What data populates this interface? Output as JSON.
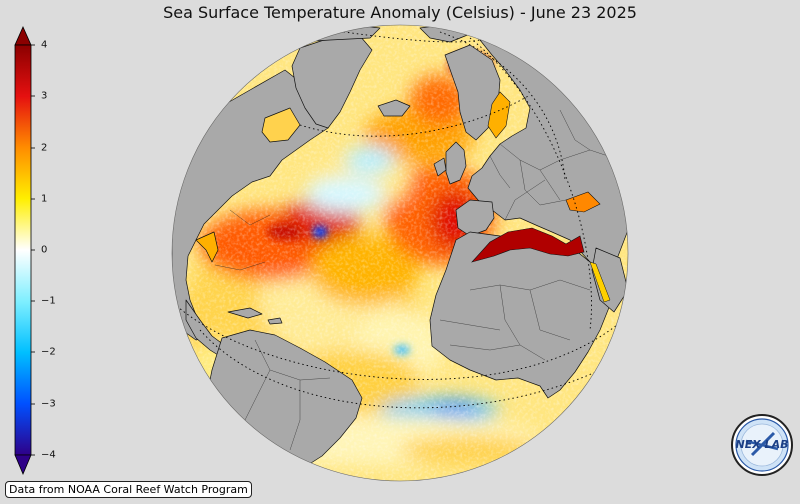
{
  "title": "Sea Surface Temperature Anomaly (Celsius) - June 23 2025",
  "colorbar": {
    "ticks": [
      "4",
      "3",
      "2",
      "1",
      "0",
      "−1",
      "−2",
      "−3",
      "−4"
    ],
    "colors": {
      "top": "#8b0000",
      "red": "#e51010",
      "orange": "#ff8c00",
      "yellow": "#ffef00",
      "zero": "#ffffff",
      "cyan": "#7fefff",
      "lightblue": "#00bfff",
      "blue": "#0050ff",
      "bottom": "#2e0088"
    }
  },
  "credit": "Data from NOAA Coral Reef Watch Program",
  "logo": {
    "text": "NEX LAB"
  },
  "colors": {
    "land": "#a9a9a9",
    "background": "#dcdcdc"
  }
}
